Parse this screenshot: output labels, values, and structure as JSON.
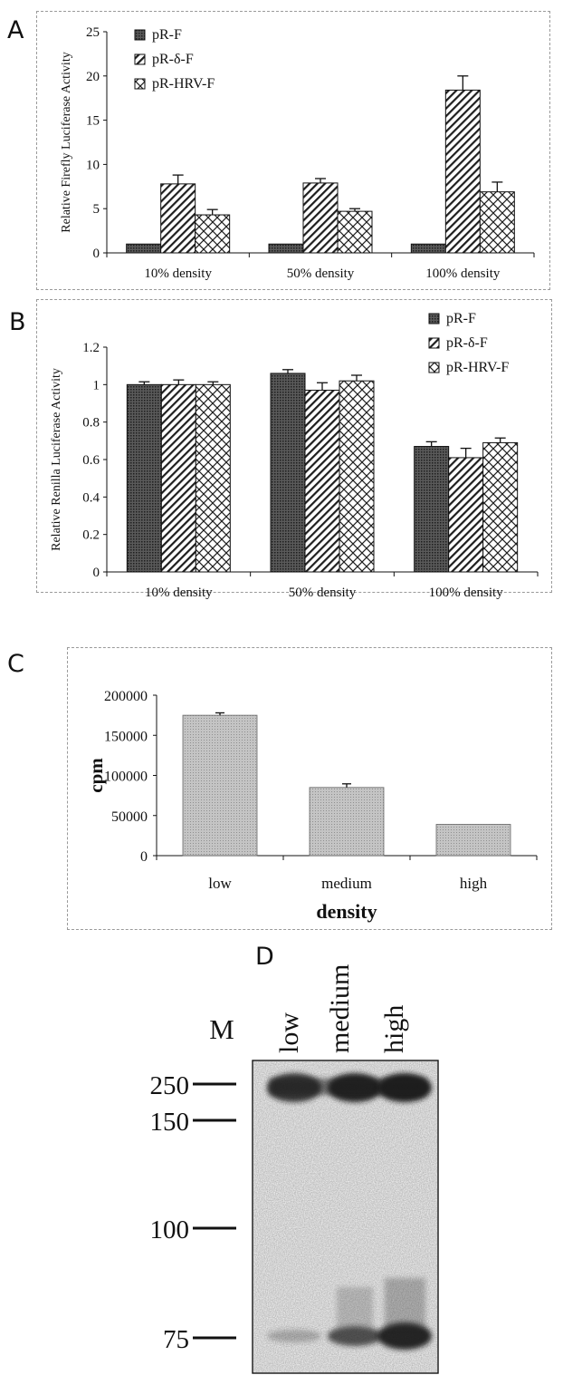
{
  "panels": {
    "a": "A",
    "b": "B",
    "c": "C",
    "d": "D"
  },
  "colors": {
    "dark": "#3a3a3a",
    "hatch": "#222222",
    "bar_c": "#bdbdbd"
  },
  "chart_data": [
    {
      "id": "A",
      "type": "bar",
      "ylabel": "Relative Firefly Luciferase Activity",
      "categories": [
        "10% density",
        "50% density",
        "100% density"
      ],
      "ylim": [
        0,
        25
      ],
      "yticks": [
        0,
        5,
        10,
        15,
        20,
        25
      ],
      "legend": "top-left",
      "series": [
        {
          "name": "pR-F",
          "pattern": "dots",
          "values": [
            1,
            1,
            1
          ],
          "errors": [
            0,
            0,
            0
          ]
        },
        {
          "name": "pR-δ-F",
          "pattern": "diag",
          "values": [
            7.8,
            7.9,
            18.4
          ],
          "errors": [
            1.0,
            0.5,
            1.6
          ]
        },
        {
          "name": "pR-HRV-F",
          "pattern": "cross",
          "values": [
            4.3,
            4.7,
            6.9
          ],
          "errors": [
            0.6,
            0.3,
            1.1
          ]
        }
      ]
    },
    {
      "id": "B",
      "type": "bar",
      "ylabel": "Relative Renilla Luciferase Activity",
      "categories": [
        "10% density",
        "50% density",
        "100% density"
      ],
      "ylim": [
        0,
        1.2
      ],
      "yticks": [
        0,
        0.2,
        0.4,
        0.6,
        0.8,
        1,
        1.2
      ],
      "legend": "top-right",
      "series": [
        {
          "name": "pR-F",
          "pattern": "dots",
          "values": [
            1.0,
            1.06,
            0.67
          ],
          "errors": [
            0.015,
            0.02,
            0.025
          ]
        },
        {
          "name": "pR-δ-F",
          "pattern": "diag",
          "values": [
            1.0,
            0.97,
            0.61
          ],
          "errors": [
            0.025,
            0.04,
            0.05
          ]
        },
        {
          "name": "pR-HRV-F",
          "pattern": "cross",
          "values": [
            1.0,
            1.02,
            0.69
          ],
          "errors": [
            0.015,
            0.03,
            0.025
          ]
        }
      ]
    },
    {
      "id": "C",
      "type": "bar",
      "ylabel": "cpm",
      "xlabel": "density",
      "categories": [
        "low",
        "medium",
        "high"
      ],
      "ylim": [
        0,
        200000
      ],
      "yticks": [
        0,
        50000,
        100000,
        150000,
        200000
      ],
      "values": [
        175000,
        85000,
        39000
      ],
      "errors": [
        3000,
        4500,
        0
      ]
    }
  ],
  "blot": {
    "marker_label": "M",
    "lanes": [
      "low",
      "medium",
      "high"
    ],
    "markers": [
      "250",
      "150",
      "100",
      "75"
    ]
  }
}
